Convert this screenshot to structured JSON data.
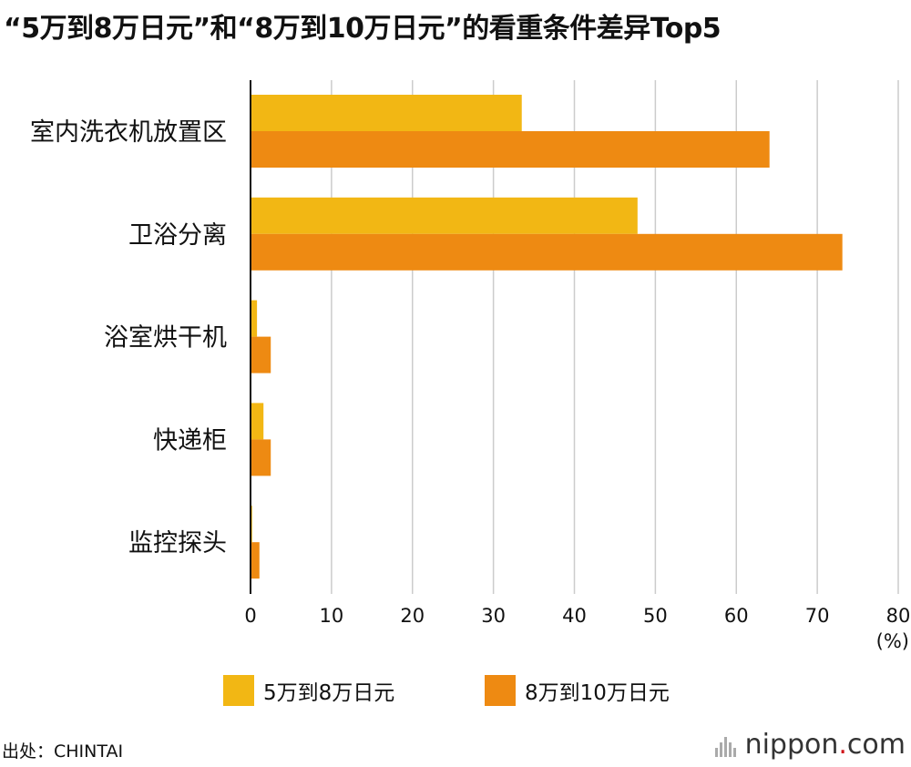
{
  "title": "“5万到8万日元”和“8万到10万日元”的看重条件差异Top5",
  "chart_data": {
    "type": "bar",
    "orientation": "horizontal",
    "title": "“5万到8万日元”和“8万到10万日元”的看重条件差异Top5",
    "categories": [
      "室内洗衣机放置区",
      "卫浴分离",
      "浴室烘干机",
      "快递柜",
      "监控探头"
    ],
    "series": [
      {
        "name": "5万到8万日元",
        "color": "#f2b714",
        "values": [
          33.5,
          47.8,
          0.8,
          1.6,
          0.2
        ]
      },
      {
        "name": "8万到10万日元",
        "color": "#ee8a12",
        "values": [
          64.1,
          73.1,
          2.5,
          2.5,
          1.1
        ]
      }
    ],
    "xlim": [
      0,
      80
    ],
    "xticks": [
      0,
      10,
      20,
      30,
      40,
      50,
      60,
      70,
      80
    ],
    "xlabel": "(%)",
    "grid": true,
    "legend_position": "bottom"
  },
  "legend": {
    "items": [
      {
        "label": "5万到8万日元",
        "color": "#f2b714"
      },
      {
        "label": "8万到10万日元",
        "color": "#ee8a12"
      }
    ]
  },
  "source": "出处：CHINTAI",
  "logo": {
    "name": "nippon",
    "dot": ".",
    "suffix": "com"
  }
}
